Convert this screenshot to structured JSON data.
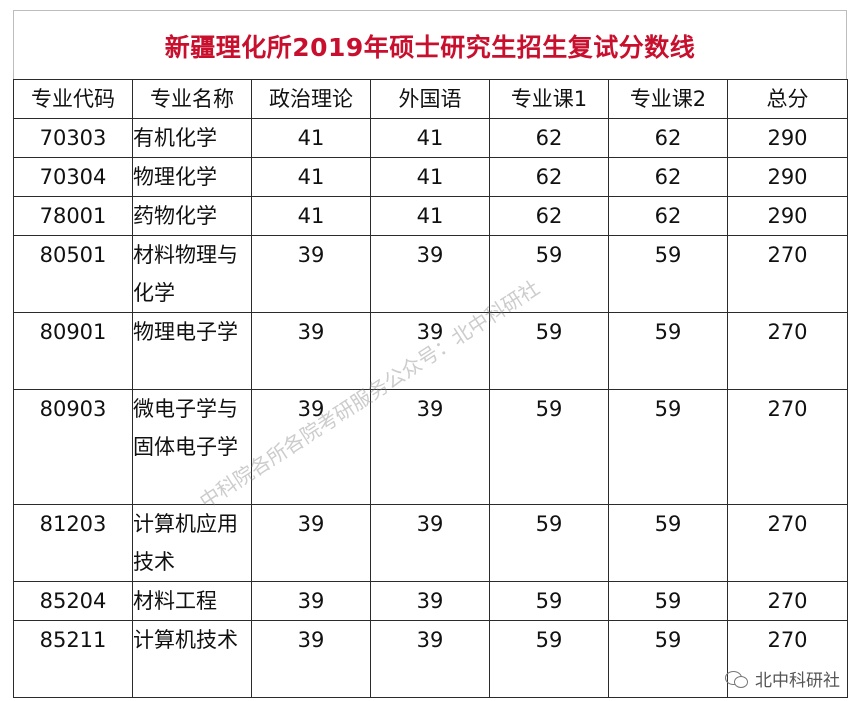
{
  "title": "新疆理化所2019年硕士研究生招生复试分数线",
  "headers": [
    "专业代码",
    "专业名称",
    "政治理论",
    "外国语",
    "专业课1",
    "专业课2",
    "总分"
  ],
  "rows": [
    {
      "code": "70303",
      "name": "有机化学",
      "politics": "41",
      "language": "41",
      "course1": "62",
      "course2": "62",
      "total": "290",
      "lines": 1
    },
    {
      "code": "70304",
      "name": "物理化学",
      "politics": "41",
      "language": "41",
      "course1": "62",
      "course2": "62",
      "total": "290",
      "lines": 1
    },
    {
      "code": "78001",
      "name": "药物化学",
      "politics": "41",
      "language": "41",
      "course1": "62",
      "course2": "62",
      "total": "290",
      "lines": 1
    },
    {
      "code": "80501",
      "name": "材料物理与化学",
      "politics": "39",
      "language": "39",
      "course1": "59",
      "course2": "59",
      "total": "270",
      "lines": 2
    },
    {
      "code": "80901",
      "name": "物理电子学",
      "politics": "39",
      "language": "39",
      "course1": "59",
      "course2": "59",
      "total": "270",
      "lines": 2
    },
    {
      "code": "80903",
      "name": "微电子学与固体电子学",
      "politics": "39",
      "language": "39",
      "course1": "59",
      "course2": "59",
      "total": "270",
      "lines": 3
    },
    {
      "code": "81203",
      "name": "计算机应用技术",
      "politics": "39",
      "language": "39",
      "course1": "59",
      "course2": "59",
      "total": "270",
      "lines": 2
    },
    {
      "code": "85204",
      "name": "材料工程",
      "politics": "39",
      "language": "39",
      "course1": "59",
      "course2": "59",
      "total": "270",
      "lines": 1
    },
    {
      "code": "85211",
      "name": "计算机技术",
      "politics": "39",
      "language": "39",
      "course1": "59",
      "course2": "59",
      "total": "270",
      "lines": 2
    }
  ],
  "watermark": "中科院各所各院考研服务公众号：北中科研社",
  "wechat": {
    "icon": "wechat-icon",
    "label": "北中科研社"
  }
}
